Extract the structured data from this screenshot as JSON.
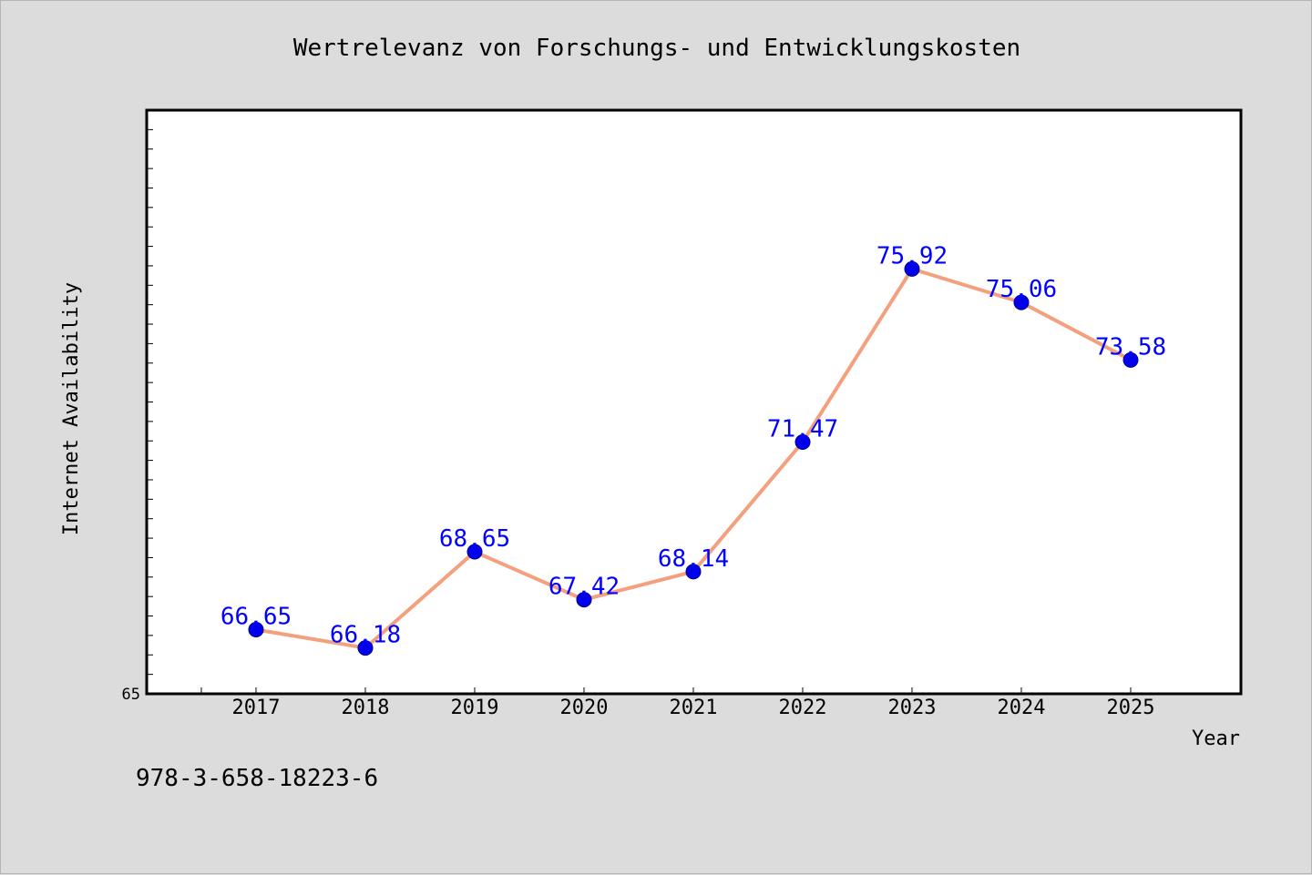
{
  "chart_data": {
    "type": "line",
    "title": "Wertrelevanz von Forschungs- und Entwicklungskosten",
    "xlabel": "Year",
    "ylabel": "Internet Availability",
    "categories": [
      "2017",
      "2018",
      "2019",
      "2020",
      "2021",
      "2022",
      "2023",
      "2024",
      "2025"
    ],
    "series": [
      {
        "values": [
          66.65,
          66.18,
          68.65,
          67.42,
          68.14,
          71.47,
          75.92,
          75.06,
          73.58
        ]
      }
    ],
    "data_labels": [
      "66.65",
      "66.18",
      "68.65",
      "67.42",
      "68.14",
      "71.47",
      "75.92",
      "75.06",
      "73.58"
    ],
    "ylim": [
      65,
      80
    ],
    "y_tick_labels": [
      "65"
    ],
    "grid": false,
    "colors": {
      "line": "#f4a07e",
      "marker": "#0000ee",
      "label": "#0000ff",
      "background": "#dcdcdc",
      "plot_background": "#ffffff"
    }
  },
  "footer_text": "978-3-658-18223-6"
}
